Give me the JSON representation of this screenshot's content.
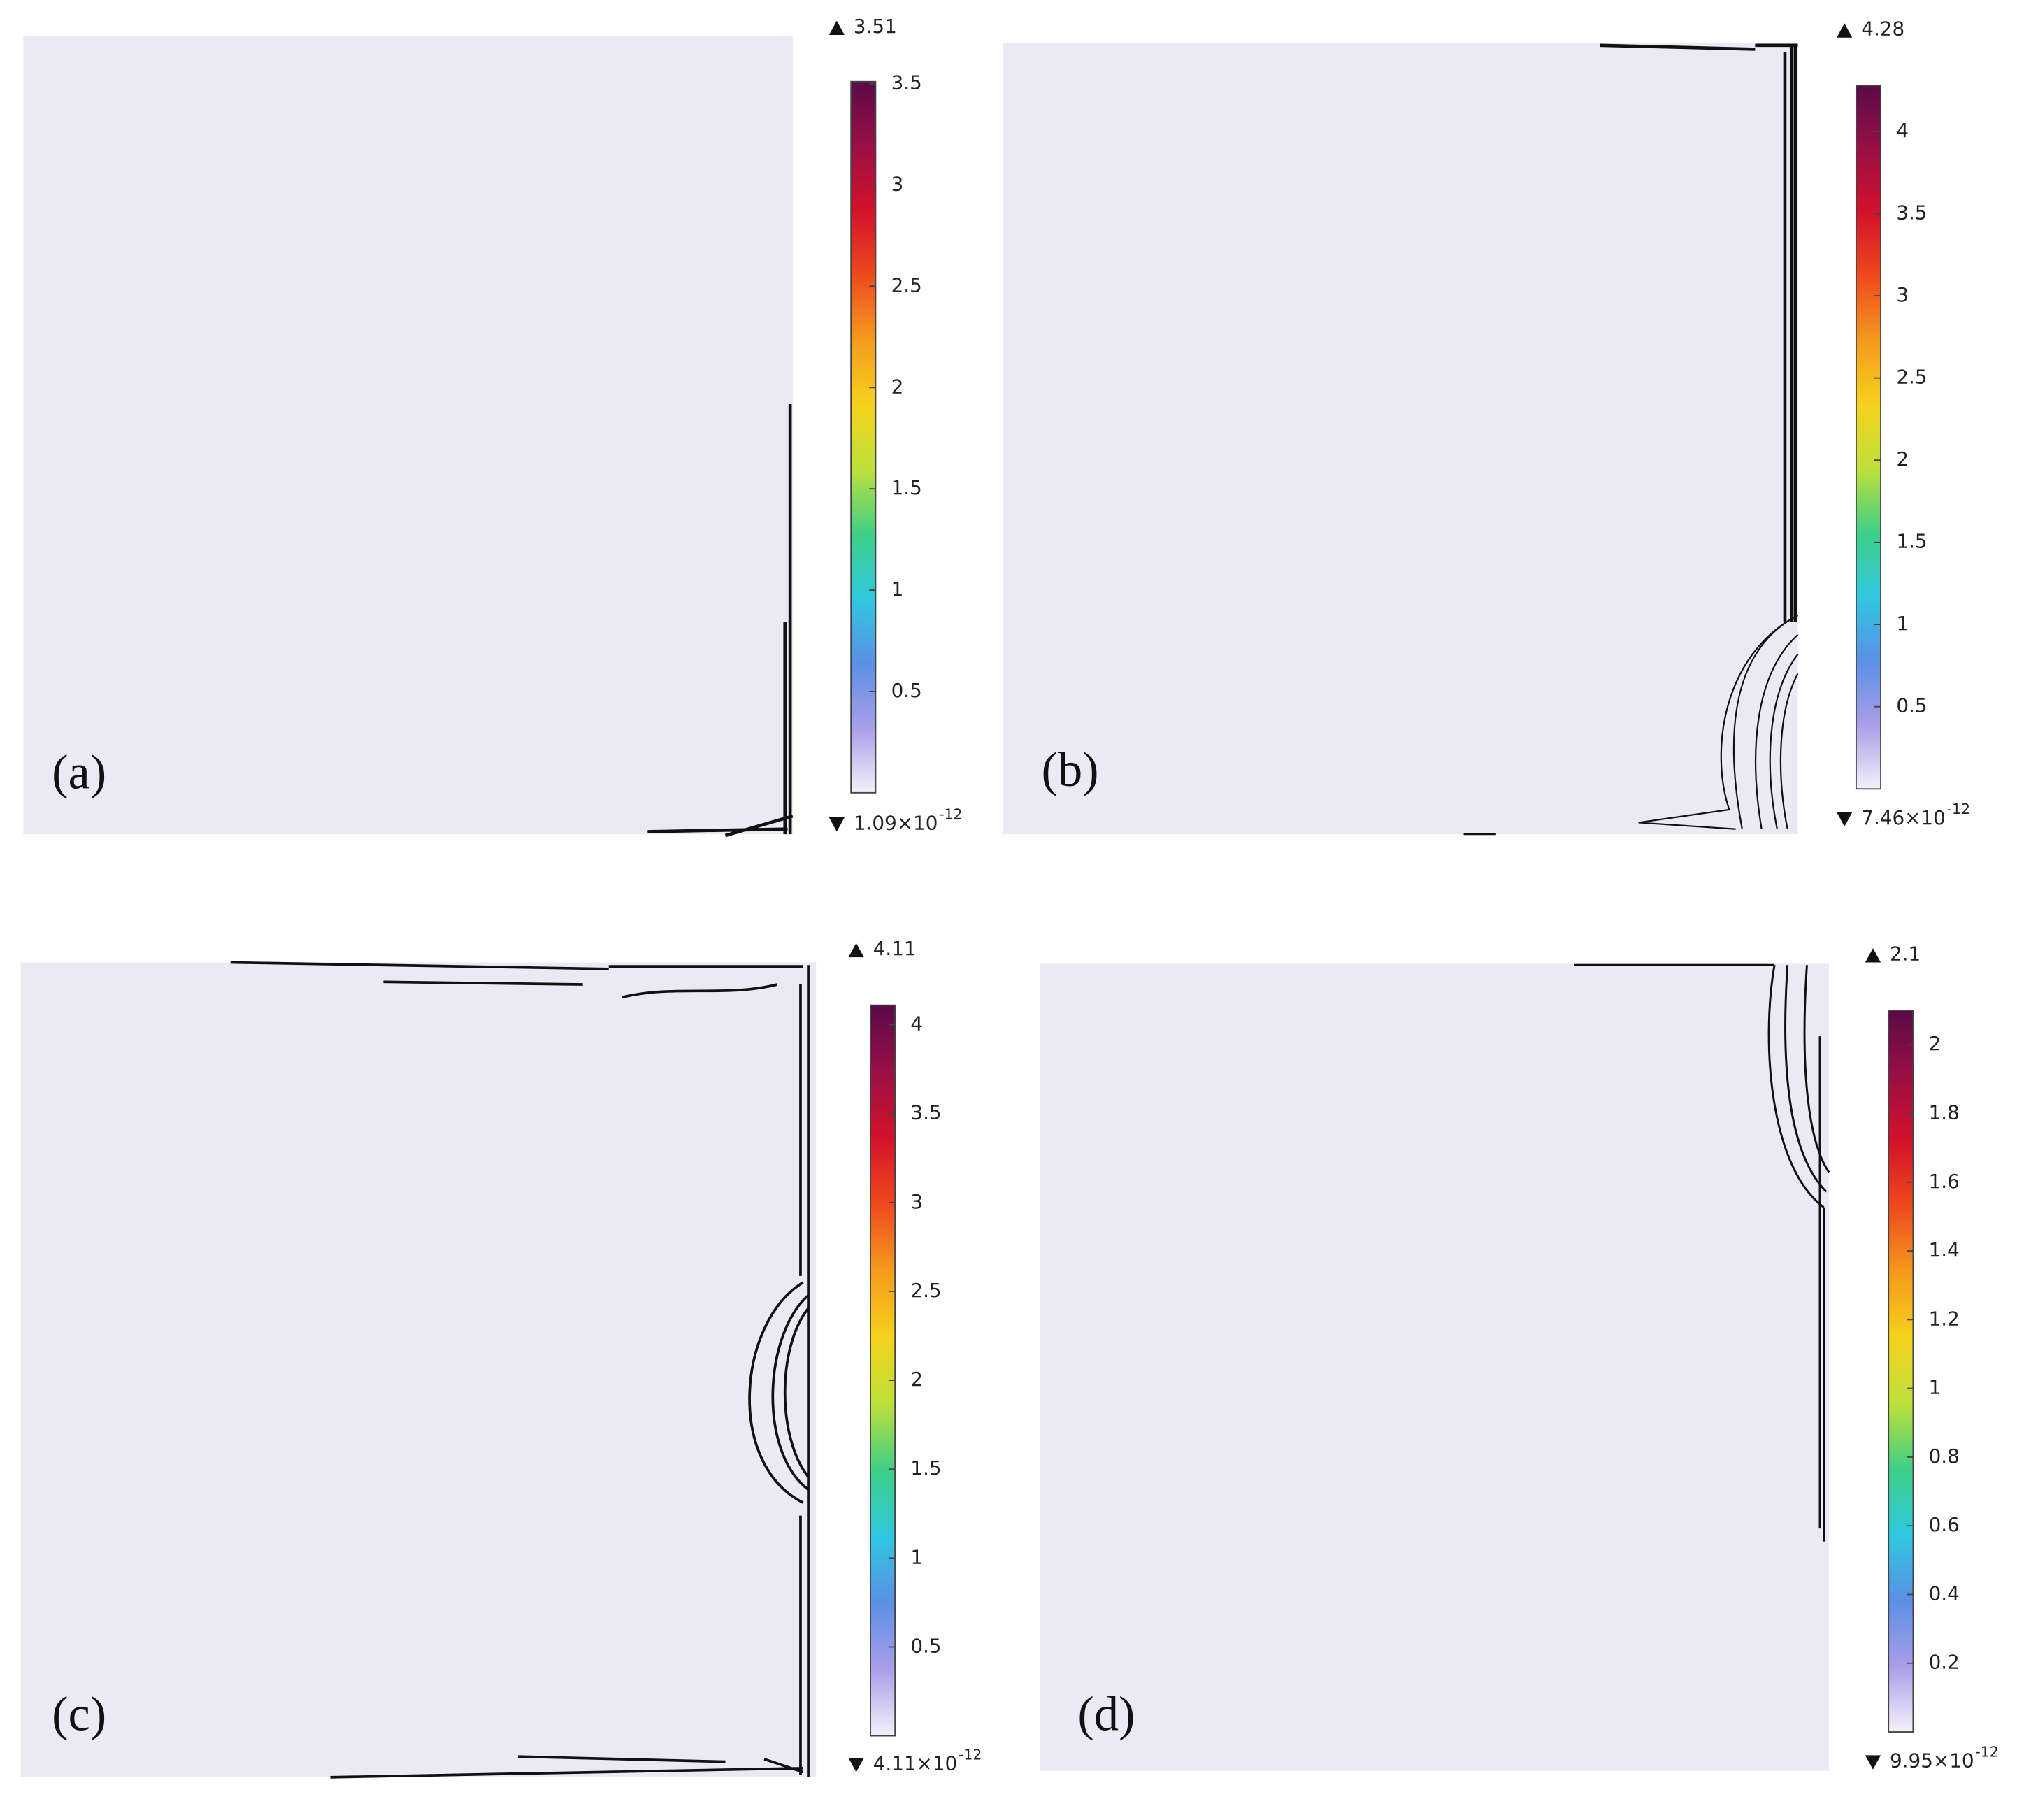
{
  "colormap": [
    "#f4f0fb",
    "#a99ee8",
    "#5b8fe6",
    "#2fc7df",
    "#3ecf86",
    "#bde03a",
    "#f5d21c",
    "#f59a1d",
    "#ee4a1d",
    "#d4122a",
    "#9a0f45",
    "#5a0a48"
  ],
  "panels": [
    {
      "label": "(a)",
      "max": 3.51,
      "min": {
        "value": 1.09e-12,
        "label": "1.09×10",
        "exponent": "-12"
      },
      "ticks": [
        0.5,
        1,
        1.5,
        2,
        2.5,
        3,
        3.5
      ]
    },
    {
      "label": "(b)",
      "max": 4.28,
      "min": {
        "value": 7.46e-12,
        "label": "7.46×10",
        "exponent": "-12"
      },
      "ticks": [
        0.5,
        1,
        1.5,
        2,
        2.5,
        3,
        3.5,
        4
      ]
    },
    {
      "label": "(c)",
      "max": 4.11,
      "min": {
        "value": 4.11e-12,
        "label": "4.11×10",
        "exponent": "-12"
      },
      "ticks": [
        0.5,
        1,
        1.5,
        2,
        2.5,
        3,
        3.5,
        4
      ]
    },
    {
      "label": "(d)",
      "max": 2.1,
      "min": {
        "value": 9.95e-12,
        "label": "9.95×10",
        "exponent": "-12"
      },
      "ticks": [
        0.2,
        0.4,
        0.6,
        0.8,
        1,
        1.2,
        1.4,
        1.6,
        1.8,
        2
      ]
    }
  ]
}
